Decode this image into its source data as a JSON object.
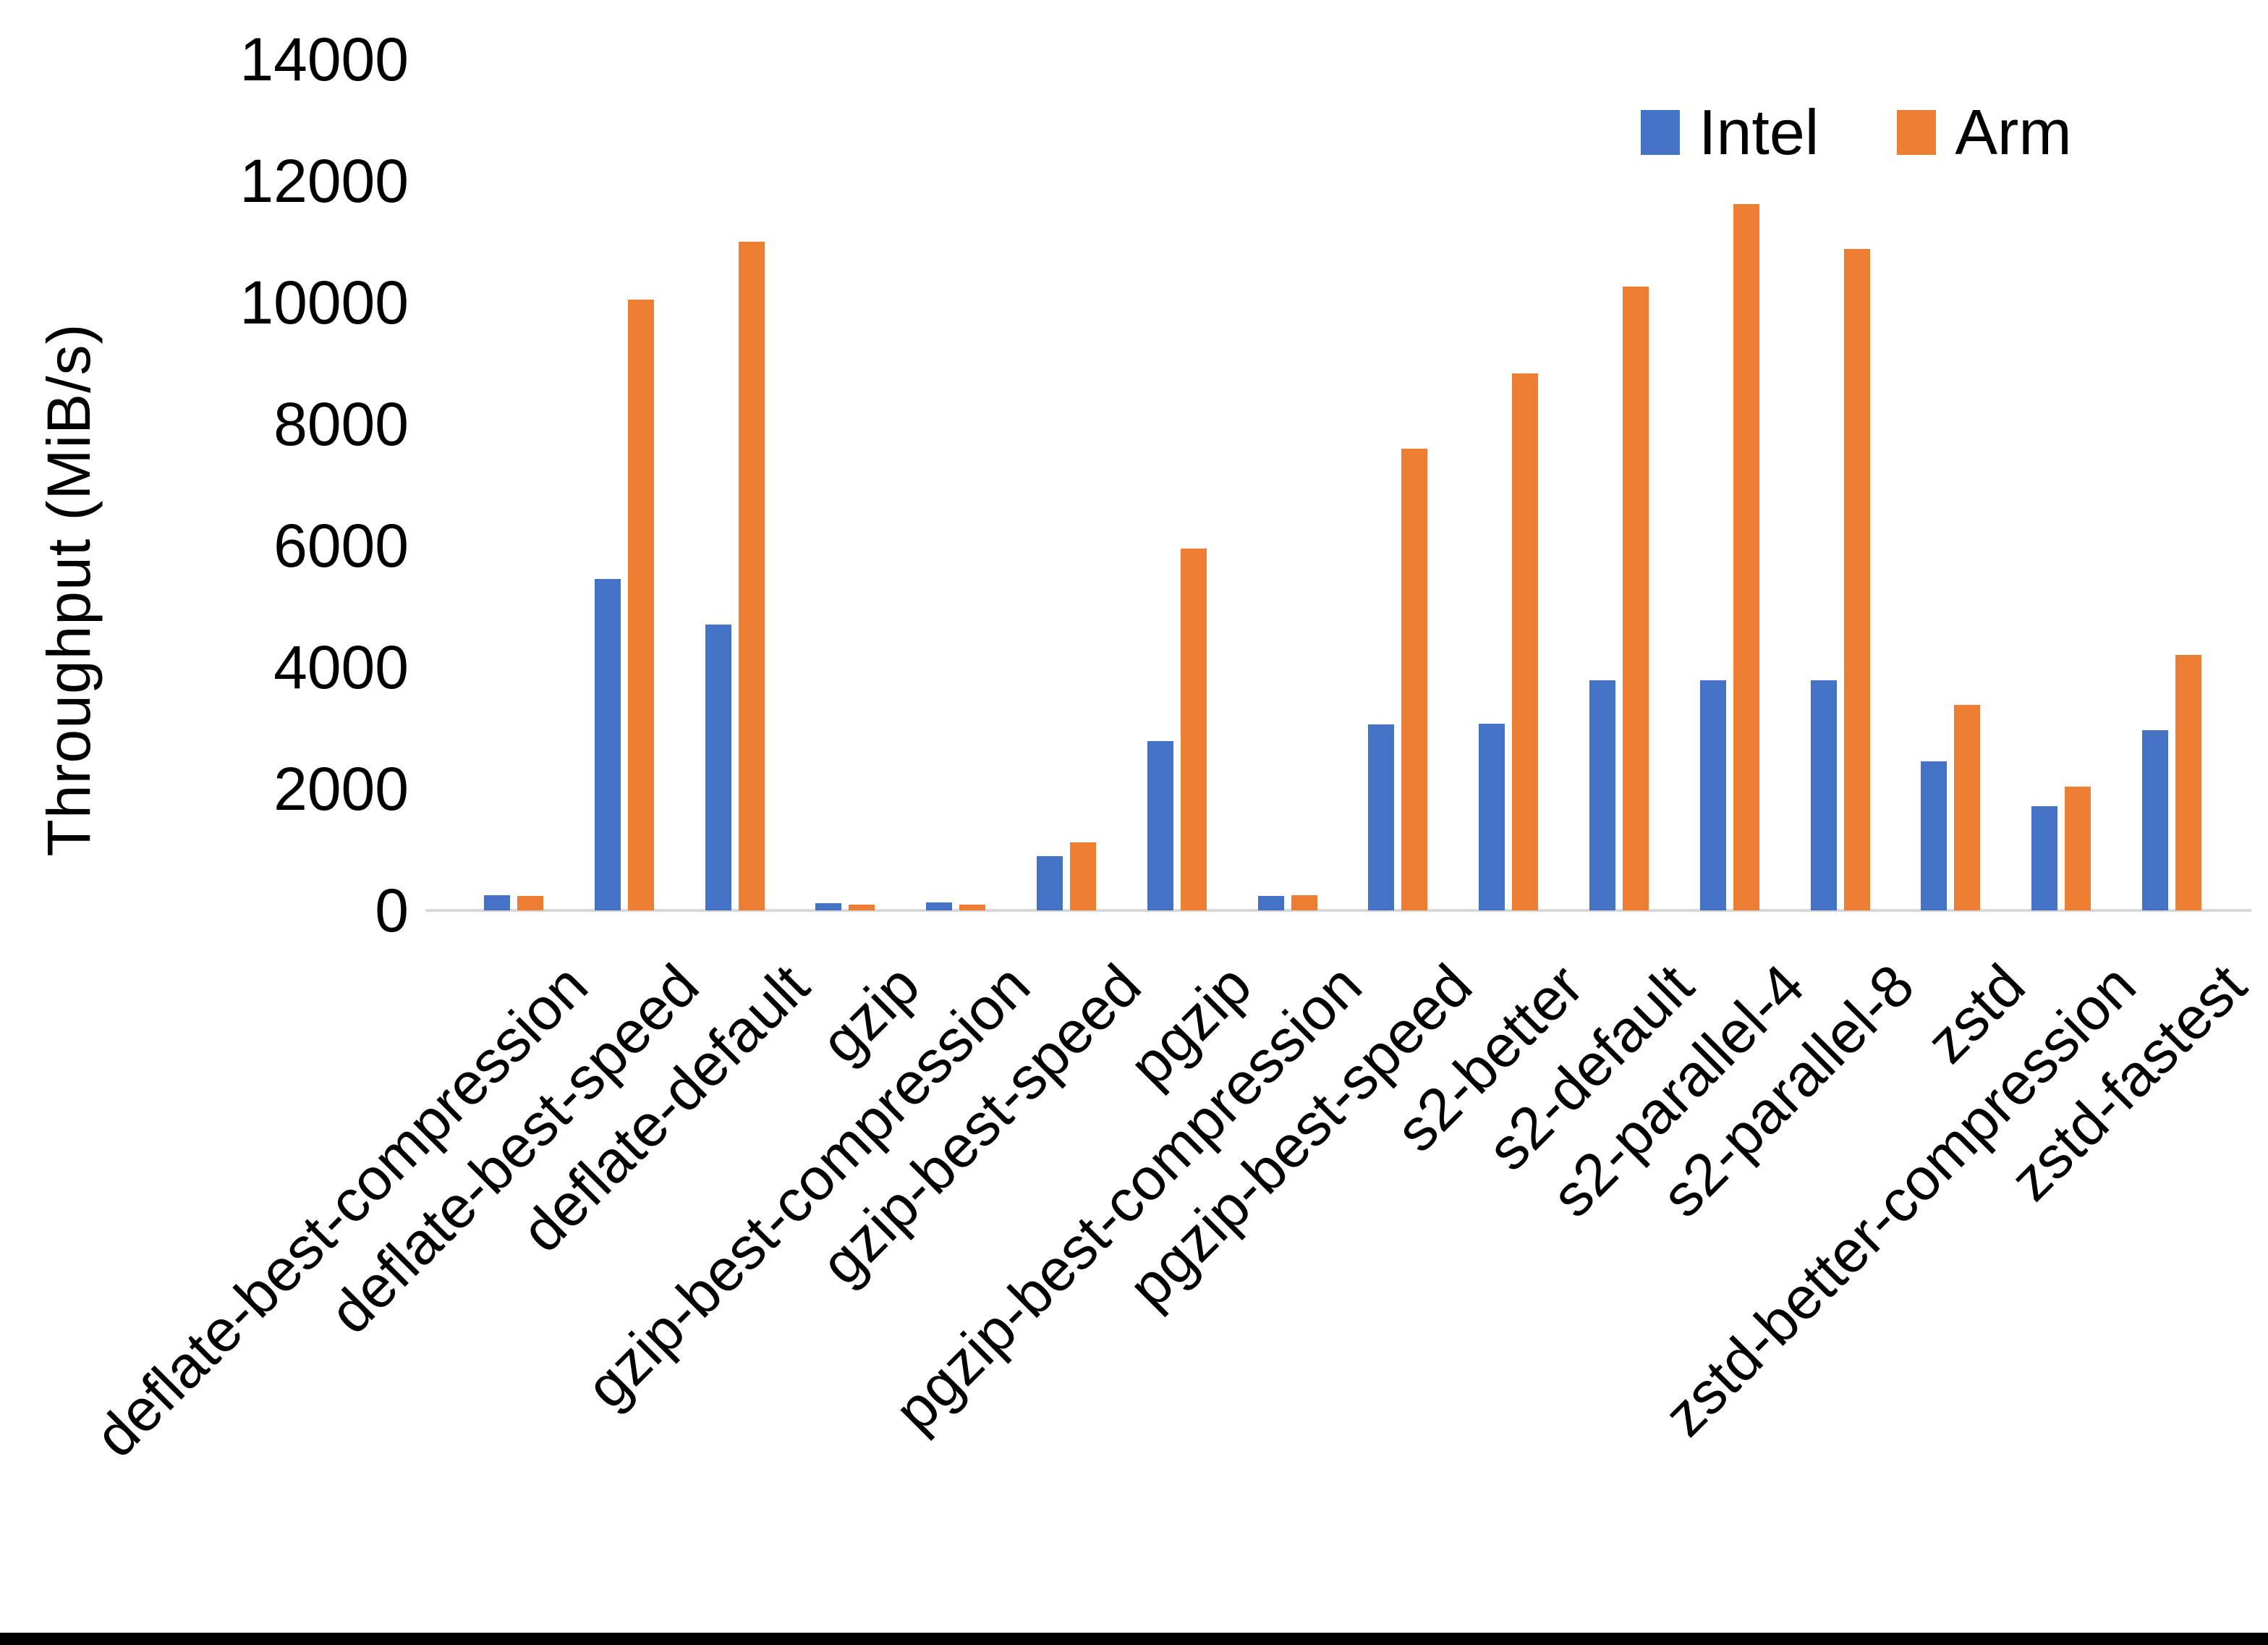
{
  "y_axis": {
    "title": "Throughput (MiB/s)"
  },
  "legend": [
    {
      "label": "Intel",
      "color": "#4472C4"
    },
    {
      "label": "Arm",
      "color": "#ED7D31"
    }
  ],
  "colors": {
    "intel": "#4472C4",
    "arm": "#ED7D31",
    "axis_line": "#D9D9D9",
    "text": "#000000",
    "background": "#FFFFFF",
    "bottom_edge": "#000000"
  },
  "chart_data": {
    "type": "bar",
    "title": "",
    "xlabel": "",
    "ylabel": "Throughput (MiB/s)",
    "ylim": [
      0,
      14000
    ],
    "ytick_step": 2000,
    "yticks": [
      0,
      2000,
      4000,
      6000,
      8000,
      10000,
      12000,
      14000
    ],
    "grid": false,
    "legend_position": "top-right",
    "categories": [
      "deflate-best-compression",
      "deflate-best-speed",
      "deflate-default",
      "gzip",
      "gzip-best-compression",
      "gzip-best-speed",
      "pgzip",
      "pgzip-best-compression",
      "pgzip-best-speed",
      "s2-better",
      "s2-default",
      "s2-parallel-4",
      "s2-parallel-8",
      "zstd",
      "zstd-better-compression",
      "zstd-fastest"
    ],
    "series": [
      {
        "name": "Intel",
        "color": "#4472C4",
        "values": [
          250,
          5450,
          4700,
          120,
          130,
          890,
          2780,
          240,
          3060,
          3070,
          3790,
          3790,
          3790,
          2450,
          1720,
          2960
        ]
      },
      {
        "name": "Arm",
        "color": "#ED7D31",
        "values": [
          240,
          10050,
          11000,
          90,
          95,
          1120,
          5950,
          255,
          7600,
          8830,
          10260,
          11620,
          10880,
          3380,
          2030,
          4200
        ]
      }
    ]
  }
}
